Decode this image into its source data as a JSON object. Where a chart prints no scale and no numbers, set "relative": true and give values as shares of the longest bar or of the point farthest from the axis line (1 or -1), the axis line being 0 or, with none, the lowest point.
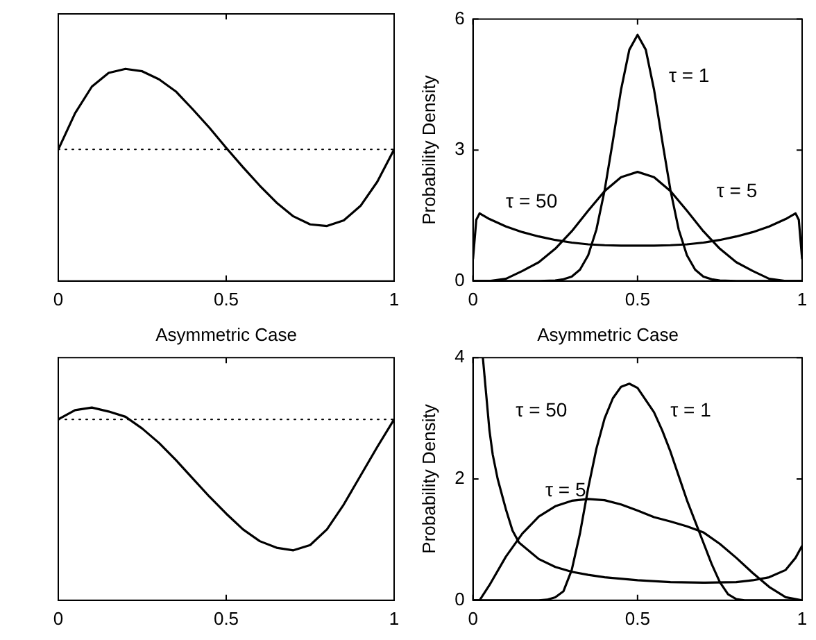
{
  "chart_data": [
    {
      "type": "line",
      "relative": true,
      "x": [
        0,
        0.05,
        0.1,
        0.15,
        0.2,
        0.25,
        0.3,
        0.35,
        0.4,
        0.45,
        0.5,
        0.55,
        0.6,
        0.65,
        0.7,
        0.75,
        0.8,
        0.85,
        0.9,
        0.95,
        1
      ],
      "xlim": [
        0,
        1
      ],
      "xticks": [
        0,
        0.5,
        1
      ],
      "tick_labels": "x",
      "grid": false,
      "legend": false,
      "marker": "none",
      "line_style": "solid",
      "ref_lines": [
        {
          "axis": "y",
          "value": 0,
          "line_style": "dotted",
          "color": "#000000"
        }
      ],
      "series": [
        {
          "color": "#000000",
          "values": [
            0,
            0.45,
            0.78,
            0.95,
            1,
            0.97,
            0.87,
            0.72,
            0.5,
            0.27,
            0.02,
            -0.22,
            -0.45,
            -0.66,
            -0.83,
            -0.93,
            -0.95,
            -0.88,
            -0.7,
            -0.4,
            0
          ]
        }
      ]
    },
    {
      "type": "line",
      "ylabel": "Probability Density",
      "xlim": [
        0,
        1
      ],
      "xticks": [
        0,
        0.5,
        1
      ],
      "ylim": [
        0,
        6
      ],
      "yticks": [
        0,
        3,
        6
      ],
      "grid": false,
      "legend": false,
      "marker": "none",
      "line_style": "solid",
      "series": [
        {
          "name": "τ = 1",
          "color": "#000000",
          "x": [
            0,
            0.2,
            0.25,
            0.275,
            0.3,
            0.325,
            0.35,
            0.375,
            0.4,
            0.425,
            0.45,
            0.475,
            0.5,
            0.525,
            0.55,
            0.575,
            0.6,
            0.625,
            0.65,
            0.675,
            0.7,
            0.725,
            0.75,
            0.8,
            1
          ],
          "values": [
            0,
            0,
            0.01,
            0.04,
            0.1,
            0.26,
            0.59,
            1.18,
            2.08,
            3.21,
            4.39,
            5.3,
            5.64,
            5.3,
            4.39,
            3.21,
            2.08,
            1.18,
            0.59,
            0.26,
            0.1,
            0.04,
            0.01,
            0,
            0
          ]
        },
        {
          "name": "τ = 5",
          "color": "#000000",
          "x": [
            0,
            0.05,
            0.1,
            0.15,
            0.2,
            0.25,
            0.3,
            0.35,
            0.4,
            0.45,
            0.5,
            0.55,
            0.6,
            0.65,
            0.7,
            0.75,
            0.8,
            0.85,
            0.9,
            0.95,
            1
          ],
          "values": [
            0,
            0,
            0.05,
            0.23,
            0.43,
            0.74,
            1.14,
            1.61,
            2.06,
            2.38,
            2.5,
            2.38,
            2.06,
            1.61,
            1.14,
            0.74,
            0.43,
            0.23,
            0.05,
            0,
            0
          ]
        },
        {
          "name": "τ = 50",
          "color": "#000000",
          "x": [
            0,
            0.01,
            0.02,
            0.05,
            0.1,
            0.15,
            0.2,
            0.25,
            0.3,
            0.35,
            0.4,
            0.45,
            0.5,
            0.55,
            0.6,
            0.65,
            0.7,
            0.75,
            0.8,
            0.85,
            0.9,
            0.95,
            0.98,
            0.99,
            1
          ],
          "values": [
            0.5,
            1.4,
            1.55,
            1.42,
            1.25,
            1.12,
            1.02,
            0.94,
            0.88,
            0.84,
            0.82,
            0.81,
            0.81,
            0.81,
            0.82,
            0.84,
            0.88,
            0.94,
            1.02,
            1.12,
            1.25,
            1.42,
            1.55,
            1.4,
            0.5
          ]
        }
      ]
    },
    {
      "type": "line",
      "relative": true,
      "title": "Asymmetric Case",
      "x": [
        0,
        0.05,
        0.1,
        0.15,
        0.2,
        0.25,
        0.3,
        0.35,
        0.4,
        0.45,
        0.5,
        0.55,
        0.6,
        0.65,
        0.7,
        0.75,
        0.8,
        0.85,
        0.9,
        0.95,
        1
      ],
      "xlim": [
        0,
        1
      ],
      "xticks": [
        0,
        0.5,
        1
      ],
      "tick_labels": "x",
      "grid": false,
      "legend": false,
      "marker": "none",
      "line_style": "solid",
      "ref_lines": [
        {
          "axis": "y",
          "value": 0,
          "line_style": "dotted",
          "color": "#000000"
        }
      ],
      "series": [
        {
          "color": "#000000",
          "values": [
            0,
            0.07,
            0.09,
            0.06,
            0.02,
            -0.07,
            -0.18,
            -0.31,
            -0.45,
            -0.59,
            -0.72,
            -0.84,
            -0.93,
            -0.98,
            -1,
            -0.96,
            -0.84,
            -0.65,
            -0.43,
            -0.21,
            0
          ]
        }
      ]
    },
    {
      "type": "line",
      "title": "Asymmetric Case",
      "ylabel": "Probability Density",
      "xlim": [
        0,
        1
      ],
      "xticks": [
        0,
        0.5,
        1
      ],
      "ylim": [
        0,
        4
      ],
      "yticks": [
        0,
        2,
        4
      ],
      "grid": false,
      "legend": false,
      "marker": "none",
      "line_style": "solid",
      "series": [
        {
          "name": "τ = 1",
          "color": "#000000",
          "x": [
            0,
            0.2,
            0.225,
            0.25,
            0.275,
            0.3,
            0.325,
            0.35,
            0.375,
            0.4,
            0.425,
            0.45,
            0.475,
            0.5,
            0.525,
            0.55,
            0.575,
            0.6,
            0.625,
            0.65,
            0.675,
            0.7,
            0.725,
            0.75,
            0.775,
            0.8,
            0.825,
            1
          ],
          "values": [
            0,
            0,
            0.01,
            0.05,
            0.15,
            0.5,
            1.1,
            1.85,
            2.5,
            3,
            3.33,
            3.52,
            3.57,
            3.5,
            3.3,
            3.1,
            2.8,
            2.45,
            2.05,
            1.65,
            1.3,
            0.95,
            0.6,
            0.3,
            0.1,
            0.02,
            0,
            0
          ]
        },
        {
          "name": "τ = 5",
          "color": "#000000",
          "x": [
            0,
            0.02,
            0.05,
            0.1,
            0.15,
            0.2,
            0.25,
            0.3,
            0.35,
            0.4,
            0.45,
            0.5,
            0.55,
            0.6,
            0.65,
            0.7,
            0.75,
            0.8,
            0.85,
            0.9,
            0.95,
            1
          ],
          "values": [
            0,
            0,
            0.25,
            0.72,
            1.1,
            1.38,
            1.55,
            1.64,
            1.67,
            1.65,
            1.58,
            1.48,
            1.37,
            1.3,
            1.22,
            1.12,
            0.93,
            0.7,
            0.45,
            0.22,
            0.05,
            0
          ]
        },
        {
          "name": "τ = 50",
          "color": "#000000",
          "x": [
            0.03,
            0.04,
            0.05,
            0.06,
            0.075,
            0.09,
            0.1,
            0.12,
            0.14,
            0.2,
            0.25,
            0.3,
            0.35,
            0.4,
            0.5,
            0.6,
            0.7,
            0.8,
            0.85,
            0.9,
            0.95,
            0.98,
            1
          ],
          "values": [
            4,
            3.4,
            2.8,
            2.4,
            2,
            1.7,
            1.5,
            1.15,
            0.95,
            0.68,
            0.55,
            0.47,
            0.42,
            0.38,
            0.33,
            0.3,
            0.29,
            0.3,
            0.33,
            0.38,
            0.5,
            0.7,
            0.9
          ]
        }
      ]
    }
  ]
}
